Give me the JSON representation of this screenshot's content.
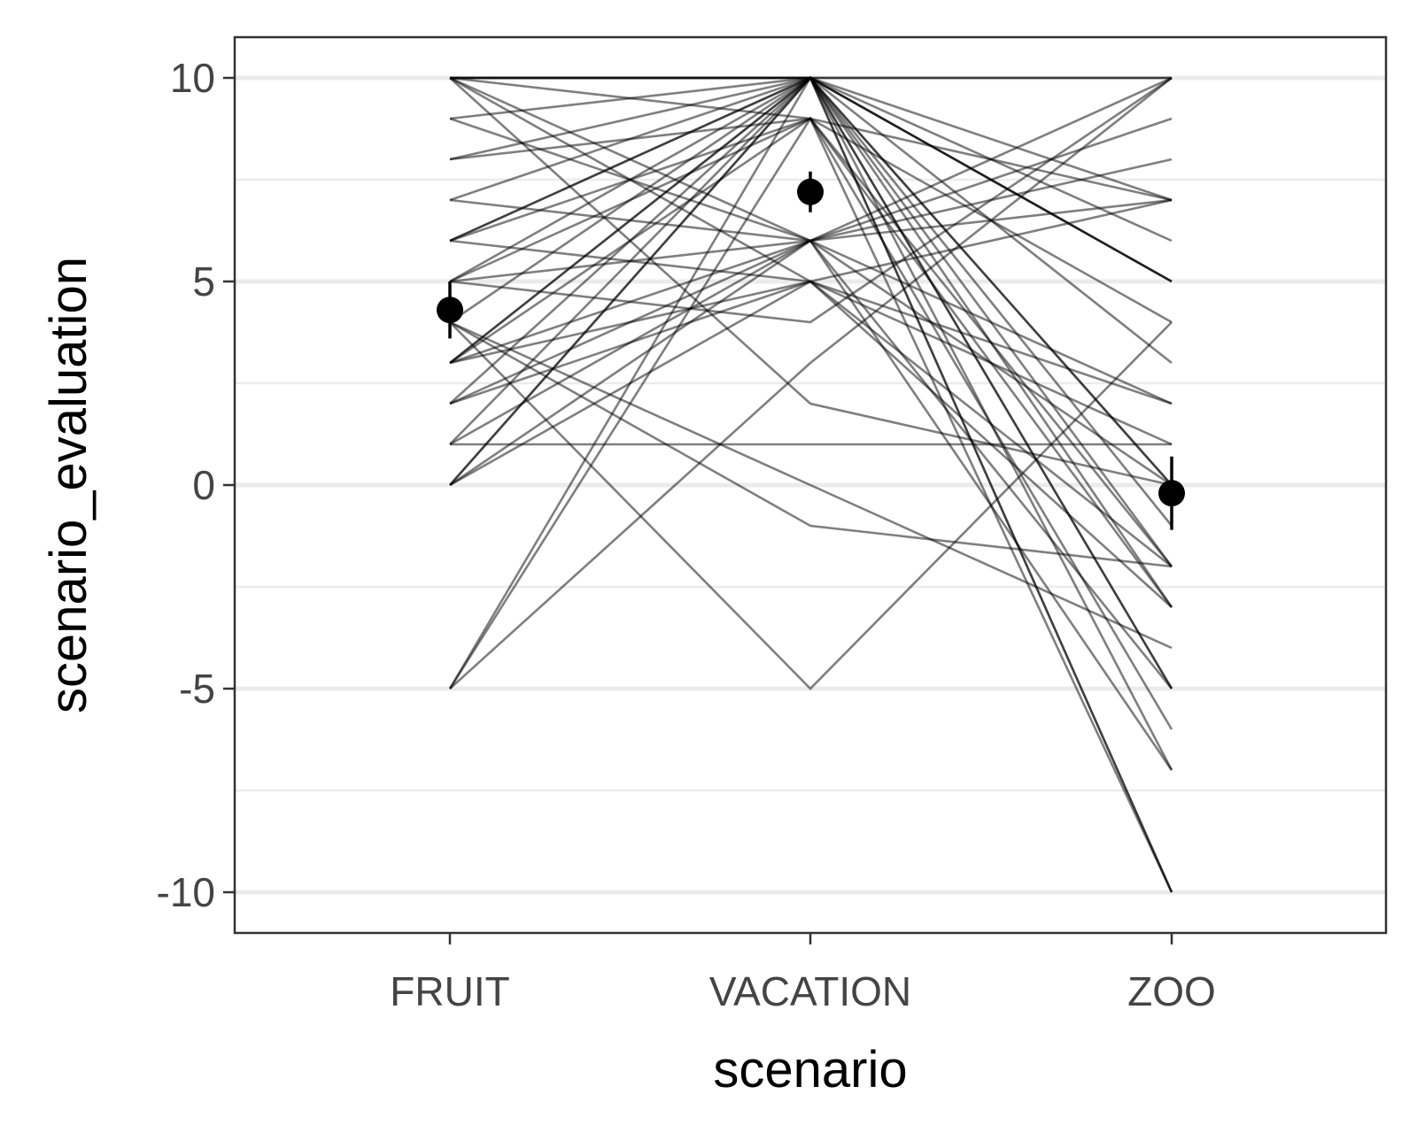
{
  "chart_data": {
    "type": "line",
    "xlabel": "scenario",
    "ylabel": "scenario_evaluation",
    "categories": [
      "FRUIT",
      "VACATION",
      "ZOO"
    ],
    "ylim": [
      -11,
      11
    ],
    "y_ticks": [
      -10,
      -5,
      0,
      5,
      10
    ],
    "y_tick_labels": [
      "-10",
      "-5",
      "0",
      "5",
      "10"
    ],
    "grid": "horizontal",
    "line_color": "#000000",
    "line_opacity": 0.5,
    "series": [
      {
        "values": [
          10,
          10,
          10
        ]
      },
      {
        "values": [
          10,
          10,
          10
        ]
      },
      {
        "values": [
          10,
          10,
          5
        ]
      },
      {
        "values": [
          10,
          9,
          7
        ]
      },
      {
        "values": [
          10,
          6,
          0
        ]
      },
      {
        "values": [
          10,
          5,
          -2
        ]
      },
      {
        "values": [
          10,
          10,
          -3
        ]
      },
      {
        "values": [
          10,
          2,
          0
        ]
      },
      {
        "values": [
          9,
          10,
          5
        ]
      },
      {
        "values": [
          9,
          6,
          -5
        ]
      },
      {
        "values": [
          8,
          9,
          -3
        ]
      },
      {
        "values": [
          8,
          10,
          7
        ]
      },
      {
        "values": [
          7,
          6,
          9
        ]
      },
      {
        "values": [
          7,
          10,
          -10
        ]
      },
      {
        "values": [
          6,
          10,
          0
        ]
      },
      {
        "values": [
          6,
          9,
          4
        ]
      },
      {
        "values": [
          6,
          10,
          -5
        ]
      },
      {
        "values": [
          6,
          5,
          2
        ]
      },
      {
        "values": [
          5,
          10,
          6
        ]
      },
      {
        "values": [
          5,
          9,
          -2
        ]
      },
      {
        "values": [
          5,
          4,
          10
        ]
      },
      {
        "values": [
          5,
          6,
          -7
        ]
      },
      {
        "values": [
          4,
          10,
          -10
        ]
      },
      {
        "values": [
          4,
          0,
          -4
        ]
      },
      {
        "values": [
          4,
          -5,
          4
        ]
      },
      {
        "values": [
          3,
          10,
          0
        ]
      },
      {
        "values": [
          3,
          10,
          3
        ]
      },
      {
        "values": [
          3,
          6,
          7
        ]
      },
      {
        "values": [
          3,
          5,
          1
        ]
      },
      {
        "values": [
          3,
          9,
          -6
        ]
      },
      {
        "values": [
          2,
          10,
          -5
        ]
      },
      {
        "values": [
          2,
          6,
          8
        ]
      },
      {
        "values": [
          2,
          5,
          -3
        ]
      },
      {
        "values": [
          1,
          1,
          1
        ]
      },
      {
        "values": [
          1,
          10,
          -2
        ]
      },
      {
        "values": [
          1,
          6,
          2
        ]
      },
      {
        "values": [
          0,
          10,
          -7
        ]
      },
      {
        "values": [
          0,
          10,
          5
        ]
      },
      {
        "values": [
          0,
          6,
          10
        ]
      },
      {
        "values": [
          0,
          5,
          7
        ]
      },
      {
        "values": [
          -5,
          10,
          -1
        ]
      },
      {
        "values": [
          -5,
          3,
          10
        ]
      },
      {
        "values": [
          -5,
          9,
          -10
        ]
      },
      {
        "values": [
          4,
          -1,
          -2
        ]
      }
    ],
    "summary": {
      "means": [
        4.3,
        7.2,
        -0.2
      ],
      "lower": [
        3.6,
        6.7,
        -1.1
      ],
      "upper": [
        5.0,
        7.7,
        0.7
      ]
    }
  }
}
